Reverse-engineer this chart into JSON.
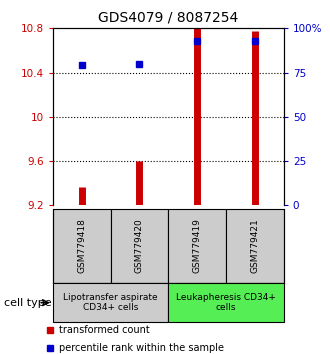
{
  "title": "GDS4079 / 8087254",
  "samples": [
    "GSM779418",
    "GSM779420",
    "GSM779419",
    "GSM779421"
  ],
  "transformed_counts": [
    9.37,
    9.6,
    10.8,
    10.78
  ],
  "percentile_ranks": [
    79,
    80,
    93,
    93
  ],
  "y_min": 9.2,
  "y_max": 10.8,
  "y_ticks": [
    9.2,
    9.6,
    10.0,
    10.4,
    10.8
  ],
  "y_ticks_right": [
    0,
    25,
    50,
    75,
    100
  ],
  "bar_color": "#cc0000",
  "dot_color": "#0000cc",
  "groups": [
    {
      "label": "Lipotransfer aspirate\nCD34+ cells",
      "start": 0,
      "end": 1,
      "color": "#cccccc"
    },
    {
      "label": "Leukapheresis CD34+\ncells",
      "start": 2,
      "end": 3,
      "color": "#55ee55"
    }
  ],
  "cell_type_label": "cell type",
  "legend_bar_label": "transformed count",
  "legend_dot_label": "percentile rank within the sample",
  "title_fontsize": 10,
  "tick_fontsize": 7.5,
  "sample_label_fontsize": 6.5,
  "group_label_fontsize": 6.5,
  "legend_fontsize": 7
}
